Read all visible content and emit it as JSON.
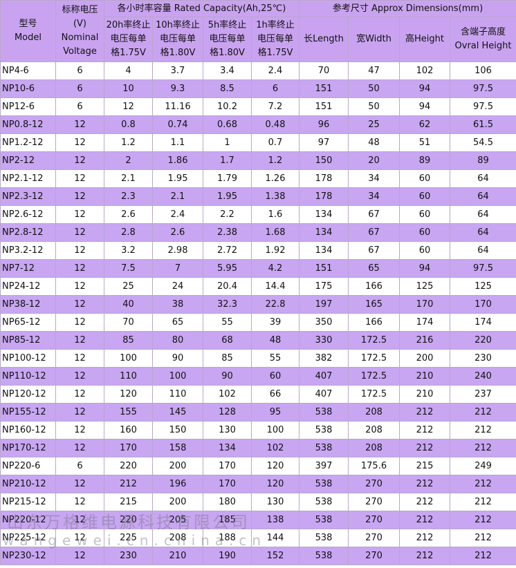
{
  "header": {
    "model": [
      "型号",
      "Model"
    ],
    "voltage": [
      "标称电压",
      "(V)",
      "Nominal",
      "Voltage"
    ],
    "capacity": "各小时率容量 Rated Capacity(Ah,25℃)",
    "dimensions": "参考尺寸 Approx Dimensions(mm)",
    "sub": [
      [
        "20h率终止",
        "电压每单",
        "格1.75V"
      ],
      [
        "10h率终止",
        "电压每单",
        "格1.80V"
      ],
      [
        "5h率终止",
        "电压每单",
        "格1.80V"
      ],
      [
        "1h率终止",
        "电压每单",
        "格1.75V"
      ],
      [
        "长Length"
      ],
      [
        "宽Width"
      ],
      [
        "高Height"
      ],
      [
        "含端子高度",
        "Ovral Height"
      ]
    ]
  },
  "table": {
    "rows": [
      [
        "NP4-6",
        "6",
        "4",
        "3.7",
        "3.4",
        "2.4",
        "70",
        "47",
        "102",
        "106"
      ],
      [
        "NP10-6",
        "6",
        "10",
        "9.3",
        "8.5",
        "6",
        "151",
        "50",
        "94",
        "97.5"
      ],
      [
        "NP12-6",
        "6",
        "12",
        "11.16",
        "10.2",
        "7.2",
        "151",
        "50",
        "94",
        "97.5"
      ],
      [
        "NP0.8-12",
        "12",
        "0.8",
        "0.74",
        "0.68",
        "0.48",
        "96",
        "25",
        "62",
        "61.5"
      ],
      [
        "NP1.2-12",
        "12",
        "1.2",
        "1.1",
        "1",
        "0.7",
        "97",
        "48",
        "51",
        "54.5"
      ],
      [
        "NP2-12",
        "12",
        "2",
        "1.86",
        "1.7",
        "1.2",
        "150",
        "20",
        "89",
        "89"
      ],
      [
        "NP2.1-12",
        "12",
        "2.1",
        "1.95",
        "1.79",
        "1.26",
        "178",
        "34",
        "60",
        "64"
      ],
      [
        "NP2.3-12",
        "12",
        "2.3",
        "2.1",
        "1.95",
        "1.38",
        "178",
        "34",
        "60",
        "64"
      ],
      [
        "NP2.6-12",
        "12",
        "2.6",
        "2.4",
        "2.2",
        "1.6",
        "134",
        "67",
        "60",
        "64"
      ],
      [
        "NP2.8-12",
        "12",
        "2.8",
        "2.6",
        "2.38",
        "1.68",
        "134",
        "67",
        "60",
        "64"
      ],
      [
        "NP3.2-12",
        "12",
        "3.2",
        "2.98",
        "2.72",
        "1.92",
        "134",
        "67",
        "60",
        "64"
      ],
      [
        "NP7-12",
        "12",
        "7.5",
        "7",
        "5.95",
        "4.2",
        "151",
        "65",
        "94",
        "97.5"
      ],
      [
        "NP24-12",
        "12",
        "25",
        "24",
        "20.4",
        "14.4",
        "175",
        "166",
        "125",
        "125"
      ],
      [
        "NP38-12",
        "12",
        "40",
        "38",
        "32.3",
        "22.8",
        "197",
        "165",
        "170",
        "170"
      ],
      [
        "NP65-12",
        "12",
        "70",
        "65",
        "55",
        "39",
        "350",
        "166",
        "174",
        "174"
      ],
      [
        "NP85-12",
        "12",
        "85",
        "80",
        "68",
        "48",
        "330",
        "172.5",
        "216",
        "220"
      ],
      [
        "NP100-12",
        "12",
        "100",
        "90",
        "85",
        "55",
        "382",
        "172.5",
        "200",
        "230"
      ],
      [
        "NP110-12",
        "12",
        "110",
        "100",
        "90",
        "60",
        "407",
        "172.5",
        "210",
        "240"
      ],
      [
        "NP120-12",
        "12",
        "120",
        "110",
        "102",
        "66",
        "407",
        "172.5",
        "210",
        "237"
      ],
      [
        "NP155-12",
        "12",
        "155",
        "145",
        "128",
        "95",
        "538",
        "208",
        "212",
        "212"
      ],
      [
        "NP160-12",
        "12",
        "160",
        "150",
        "130",
        "100",
        "538",
        "208",
        "212",
        "212"
      ],
      [
        "NP170-12",
        "12",
        "170",
        "158",
        "134",
        "102",
        "538",
        "208",
        "212",
        "212"
      ],
      [
        "NP220-6",
        "6",
        "220",
        "200",
        "170",
        "120",
        "397",
        "175.6",
        "215",
        "249"
      ],
      [
        "NP210-12",
        "12",
        "212",
        "196",
        "170",
        "120",
        "538",
        "270",
        "212",
        "212"
      ],
      [
        "NP215-12",
        "12",
        "215",
        "200",
        "180",
        "130",
        "538",
        "270",
        "212",
        "212"
      ],
      [
        "NP220-12",
        "12",
        "220",
        "205",
        "185",
        "138",
        "538",
        "270",
        "212",
        "212"
      ],
      [
        "NP225-12",
        "12",
        "225",
        "208",
        "188",
        "144",
        "538",
        "270",
        "212",
        "212"
      ],
      [
        "NP230-12",
        "12",
        "230",
        "210",
        "190",
        "152",
        "538",
        "270",
        "212",
        "212"
      ]
    ]
  },
  "watermark": {
    "company": "山东万格维电源科技有限公司",
    "site": "wangewei.cn.china.cn"
  }
}
